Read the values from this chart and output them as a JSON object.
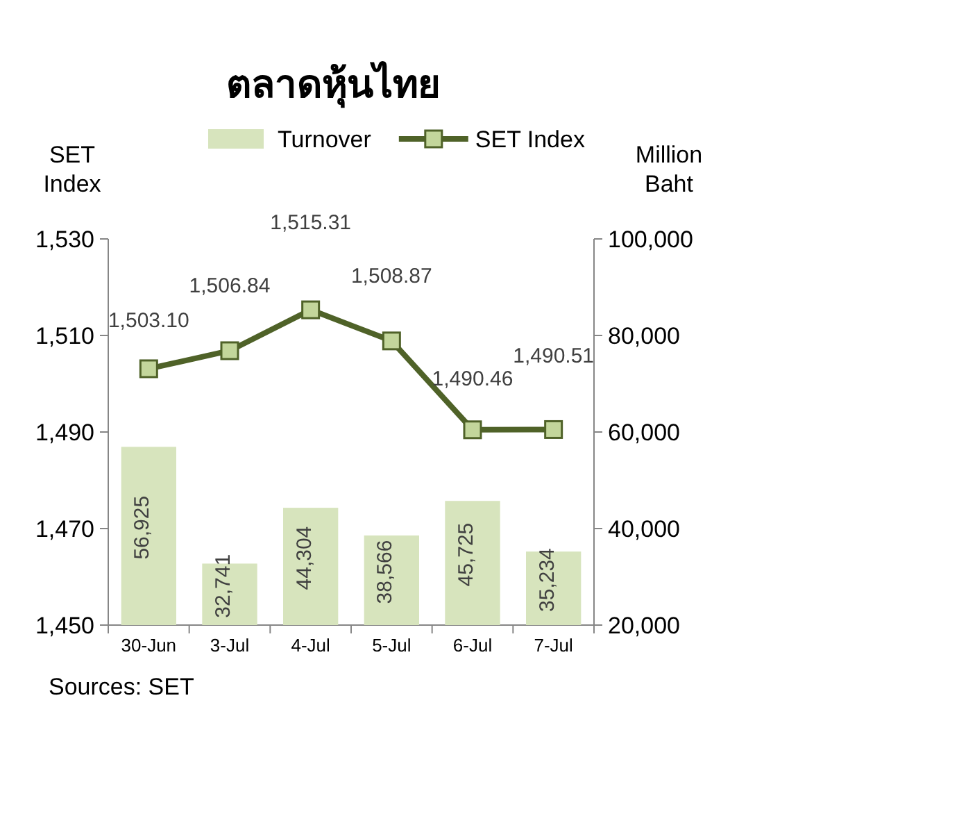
{
  "chart_data": {
    "type": "bar",
    "title": "ตลาดหุ้นไทย",
    "categories": [
      "30-Jun",
      "3-Jul",
      "4-Jul",
      "5-Jul",
      "6-Jul",
      "7-Jul"
    ],
    "series": [
      {
        "name": "Turnover",
        "axis": "y2",
        "color": "#d7e4bd",
        "values": [
          56925,
          32741,
          44304,
          38566,
          45725,
          35234
        ],
        "value_labels": [
          "56,925",
          "32,741",
          "44,304",
          "38,566",
          "45,725",
          "35,234"
        ]
      },
      {
        "name": "SET Index",
        "type": "line",
        "color": "#4f6228",
        "marker": "square",
        "values": [
          1503.1,
          1506.84,
          1515.31,
          1508.87,
          1490.46,
          1490.51
        ],
        "value_labels": [
          "1,503.10",
          "1,506.84",
          "1,515.31",
          "1,508.87",
          "1,490.46",
          "1,490.51"
        ]
      }
    ],
    "ylabel": "SET Index",
    "y2label": "Million Baht",
    "ylim": [
      1450,
      1530
    ],
    "yticks": [
      {
        "value": 1450,
        "label": "1,450"
      },
      {
        "value": 1470,
        "label": "1,470"
      },
      {
        "value": 1490,
        "label": "1,490"
      },
      {
        "value": 1510,
        "label": "1,510"
      },
      {
        "value": 1530,
        "label": "1,530"
      }
    ],
    "y2lim": [
      20000,
      100000
    ],
    "y2ticks": [
      {
        "value": 20000,
        "label": "20,000"
      },
      {
        "value": 40000,
        "label": "40,000"
      },
      {
        "value": 60000,
        "label": "60,000"
      },
      {
        "value": 80000,
        "label": "80,000"
      },
      {
        "value": 100000,
        "label": "100,000"
      }
    ],
    "legend": "top",
    "grid": false,
    "annotations": [
      "Sources: SET"
    ]
  }
}
